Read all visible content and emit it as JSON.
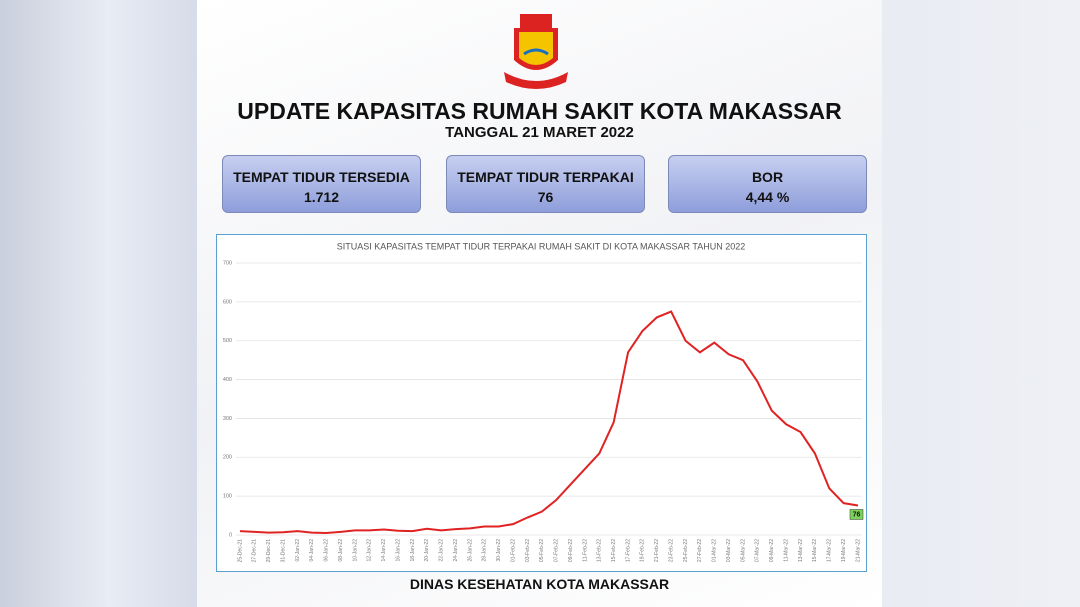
{
  "header": {
    "title": "UPDATE KAPASITAS RUMAH SAKIT KOTA MAKASSAR",
    "subtitle": "TANGGAL 21 MARET 2022"
  },
  "stats": [
    {
      "label": "TEMPAT TIDUR TERSEDIA",
      "value": "1.712"
    },
    {
      "label": "TEMPAT TIDUR TERPAKAI",
      "value": "76"
    },
    {
      "label": "BOR",
      "value": "4,44 %"
    }
  ],
  "chart_data": {
    "type": "line",
    "title": "SITUASI KAPASITAS TEMPAT TIDUR TERPAKAI RUMAH SAKIT DI KOTA MAKASSAR TAHUN 2022",
    "categories": [
      "25-Dec-21",
      "27-Dec-21",
      "29-Dec-21",
      "31-Dec-21",
      "02-Jan-22",
      "04-Jan-22",
      "06-Jan-22",
      "08-Jan-22",
      "10-Jan-22",
      "12-Jan-22",
      "14-Jan-22",
      "16-Jan-22",
      "18-Jan-22",
      "20-Jan-22",
      "22-Jan-22",
      "24-Jan-22",
      "26-Jan-22",
      "28-Jan-22",
      "30-Jan-22",
      "01-Feb-22",
      "03-Feb-22",
      "05-Feb-22",
      "07-Feb-22",
      "09-Feb-22",
      "11-Feb-22",
      "13-Feb-22",
      "15-Feb-22",
      "17-Feb-22",
      "19-Feb-22",
      "21-Feb-22",
      "23-Feb-22",
      "25-Feb-22",
      "27-Feb-22",
      "01-Mar-22",
      "03-Mar-22",
      "05-Mar-22",
      "07-Mar-22",
      "09-Mar-22",
      "11-Mar-22",
      "13-Mar-22",
      "15-Mar-22",
      "17-Mar-22",
      "19-Mar-22",
      "21-Mar-22"
    ],
    "series": [
      {
        "name": "Tempat Tidur Terpakai",
        "color": "#e02222",
        "values": [
          10,
          8,
          6,
          7,
          10,
          6,
          5,
          8,
          12,
          12,
          14,
          11,
          10,
          16,
          12,
          15,
          17,
          22,
          22,
          28,
          45,
          60,
          90,
          130,
          170,
          210,
          290,
          470,
          525,
          560,
          575,
          500,
          470,
          495,
          465,
          450,
          395,
          320,
          285,
          265,
          210,
          120,
          82,
          76
        ]
      }
    ],
    "ylim": [
      0,
      700
    ],
    "yticks": [
      0,
      100,
      200,
      300,
      400,
      500,
      600,
      700
    ],
    "grid": true
  },
  "footer": "DINAS KESEHATAN KOTA MAKASSAR"
}
